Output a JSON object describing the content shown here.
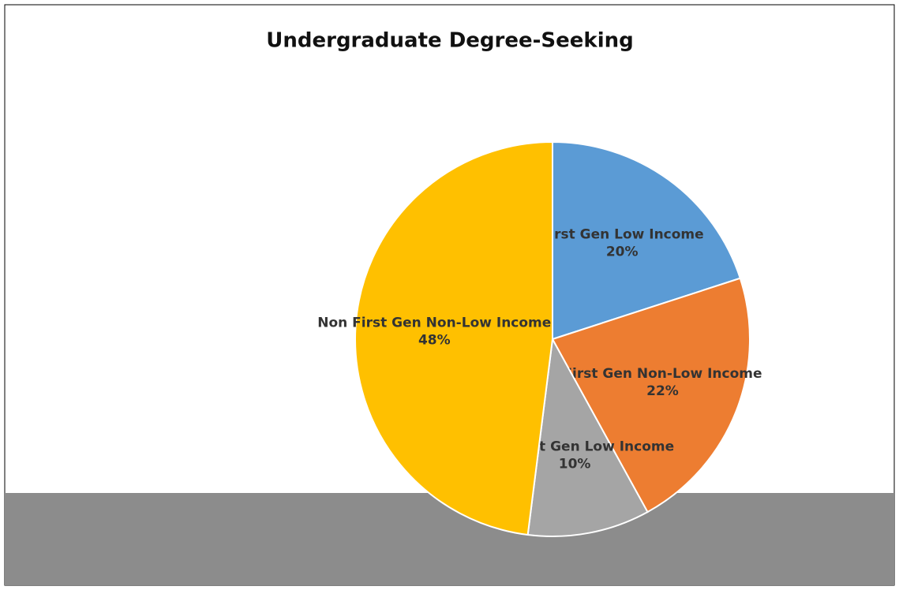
{
  "chart_data": {
    "type": "pie",
    "title": "Undergraduate Degree-Seeking",
    "categories": [
      "First Gen Low Income",
      "First Gen Non-Low Income",
      "Non-First Gen Low Income",
      "Non First Gen Non-Low Income"
    ],
    "values": [
      20,
      22,
      10,
      48
    ],
    "value_labels": [
      "20%",
      "22%",
      "10%",
      "48%"
    ],
    "colors": [
      "#5b9bd5",
      "#ed7d31",
      "#a5a5a5",
      "#ffc000"
    ]
  }
}
